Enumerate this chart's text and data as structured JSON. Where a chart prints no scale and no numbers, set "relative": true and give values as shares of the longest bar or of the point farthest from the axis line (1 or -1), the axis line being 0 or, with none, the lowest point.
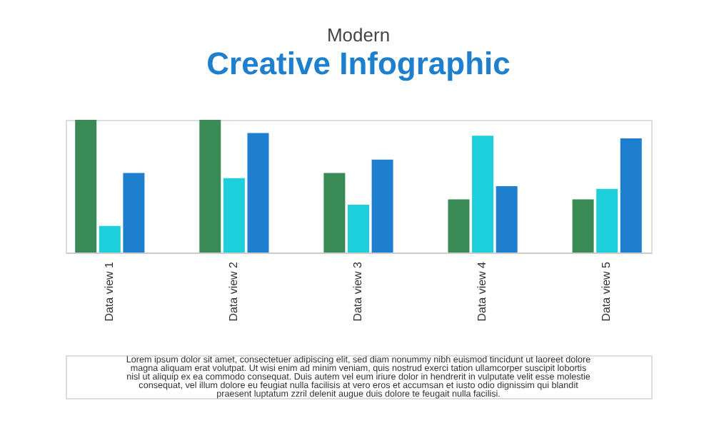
{
  "chart_data": {
    "type": "bar",
    "title": "Modern",
    "subtitle": "Creative Infographic",
    "relative": true,
    "legend": false,
    "grid": false,
    "categories": [
      "Data view 1",
      "Data view 2",
      "Data view 3",
      "Data view 4",
      "Data view 5"
    ],
    "series": [
      {
        "color": "#3a8a55",
        "values": [
          1,
          1,
          0.6,
          0.4,
          0.4
        ]
      },
      {
        "color": "#1ccfdb",
        "values": [
          0.2,
          0.56,
          0.36,
          0.88,
          0.48
        ]
      },
      {
        "color": "#1e7fcf",
        "values": [
          0.6,
          0.9,
          0.7,
          0.5,
          0.86
        ]
      }
    ],
    "annotations": [
      "Lorem ipsum dolor sit amet, consectetuer adipiscing elit, sed diam nonummy nibh euismod tincidunt ut laoreet dolore magna aliquam erat volutpat. Ut wisi enim ad minim veniam, quis nostrud exerci tation ullamcorper suscipit lobortis nisl ut aliquip ex ea commodo consequat. Duis autem vel eum iriure dolor in hendrerit in vulputate velit esse molestie consequat, vel illum dolore eu feugiat nulla facilisis at vero eros et accumsan et iusto odio dignissim qui blandit praesent luptatum zzril delenit augue duis dolore te feugait nulla facilisi."
    ]
  }
}
